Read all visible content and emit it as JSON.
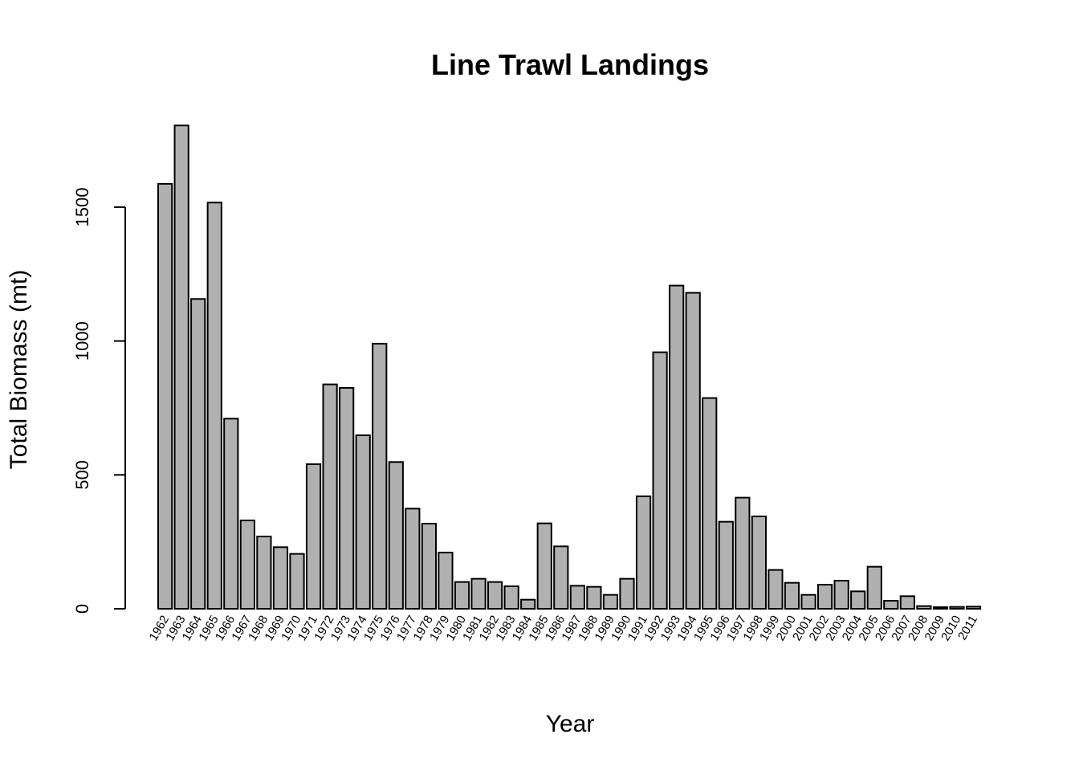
{
  "chart_data": {
    "type": "bar",
    "title": "Line Trawl Landings",
    "xlabel": "Year",
    "ylabel": "Total Biomass (mt)",
    "ylim": [
      0,
      1800
    ],
    "yticks": [
      0,
      500,
      1000,
      1500
    ],
    "grid": false,
    "bar_color": "#b0b0b0",
    "categories": [
      "1962",
      "1963",
      "1964",
      "1965",
      "1966",
      "1967",
      "1968",
      "1969",
      "1970",
      "1971",
      "1972",
      "1973",
      "1974",
      "1975",
      "1976",
      "1977",
      "1978",
      "1979",
      "1980",
      "1981",
      "1982",
      "1983",
      "1984",
      "1985",
      "1986",
      "1987",
      "1988",
      "1989",
      "1990",
      "1991",
      "1992",
      "1993",
      "1994",
      "1995",
      "1996",
      "1997",
      "1998",
      "1999",
      "2000",
      "2001",
      "2002",
      "2003",
      "2004",
      "2005",
      "2006",
      "2007",
      "2008",
      "2009",
      "2010",
      "2011"
    ],
    "values": [
      1587,
      1805,
      1157,
      1517,
      710,
      330,
      270,
      230,
      205,
      540,
      838,
      825,
      648,
      990,
      548,
      374,
      318,
      210,
      100,
      112,
      100,
      84,
      34,
      319,
      233,
      86,
      82,
      52,
      112,
      420,
      958,
      1207,
      1180,
      787,
      325,
      415,
      345,
      145,
      97,
      52,
      90,
      105,
      65,
      157,
      30,
      47,
      10,
      6,
      7,
      8
    ]
  }
}
